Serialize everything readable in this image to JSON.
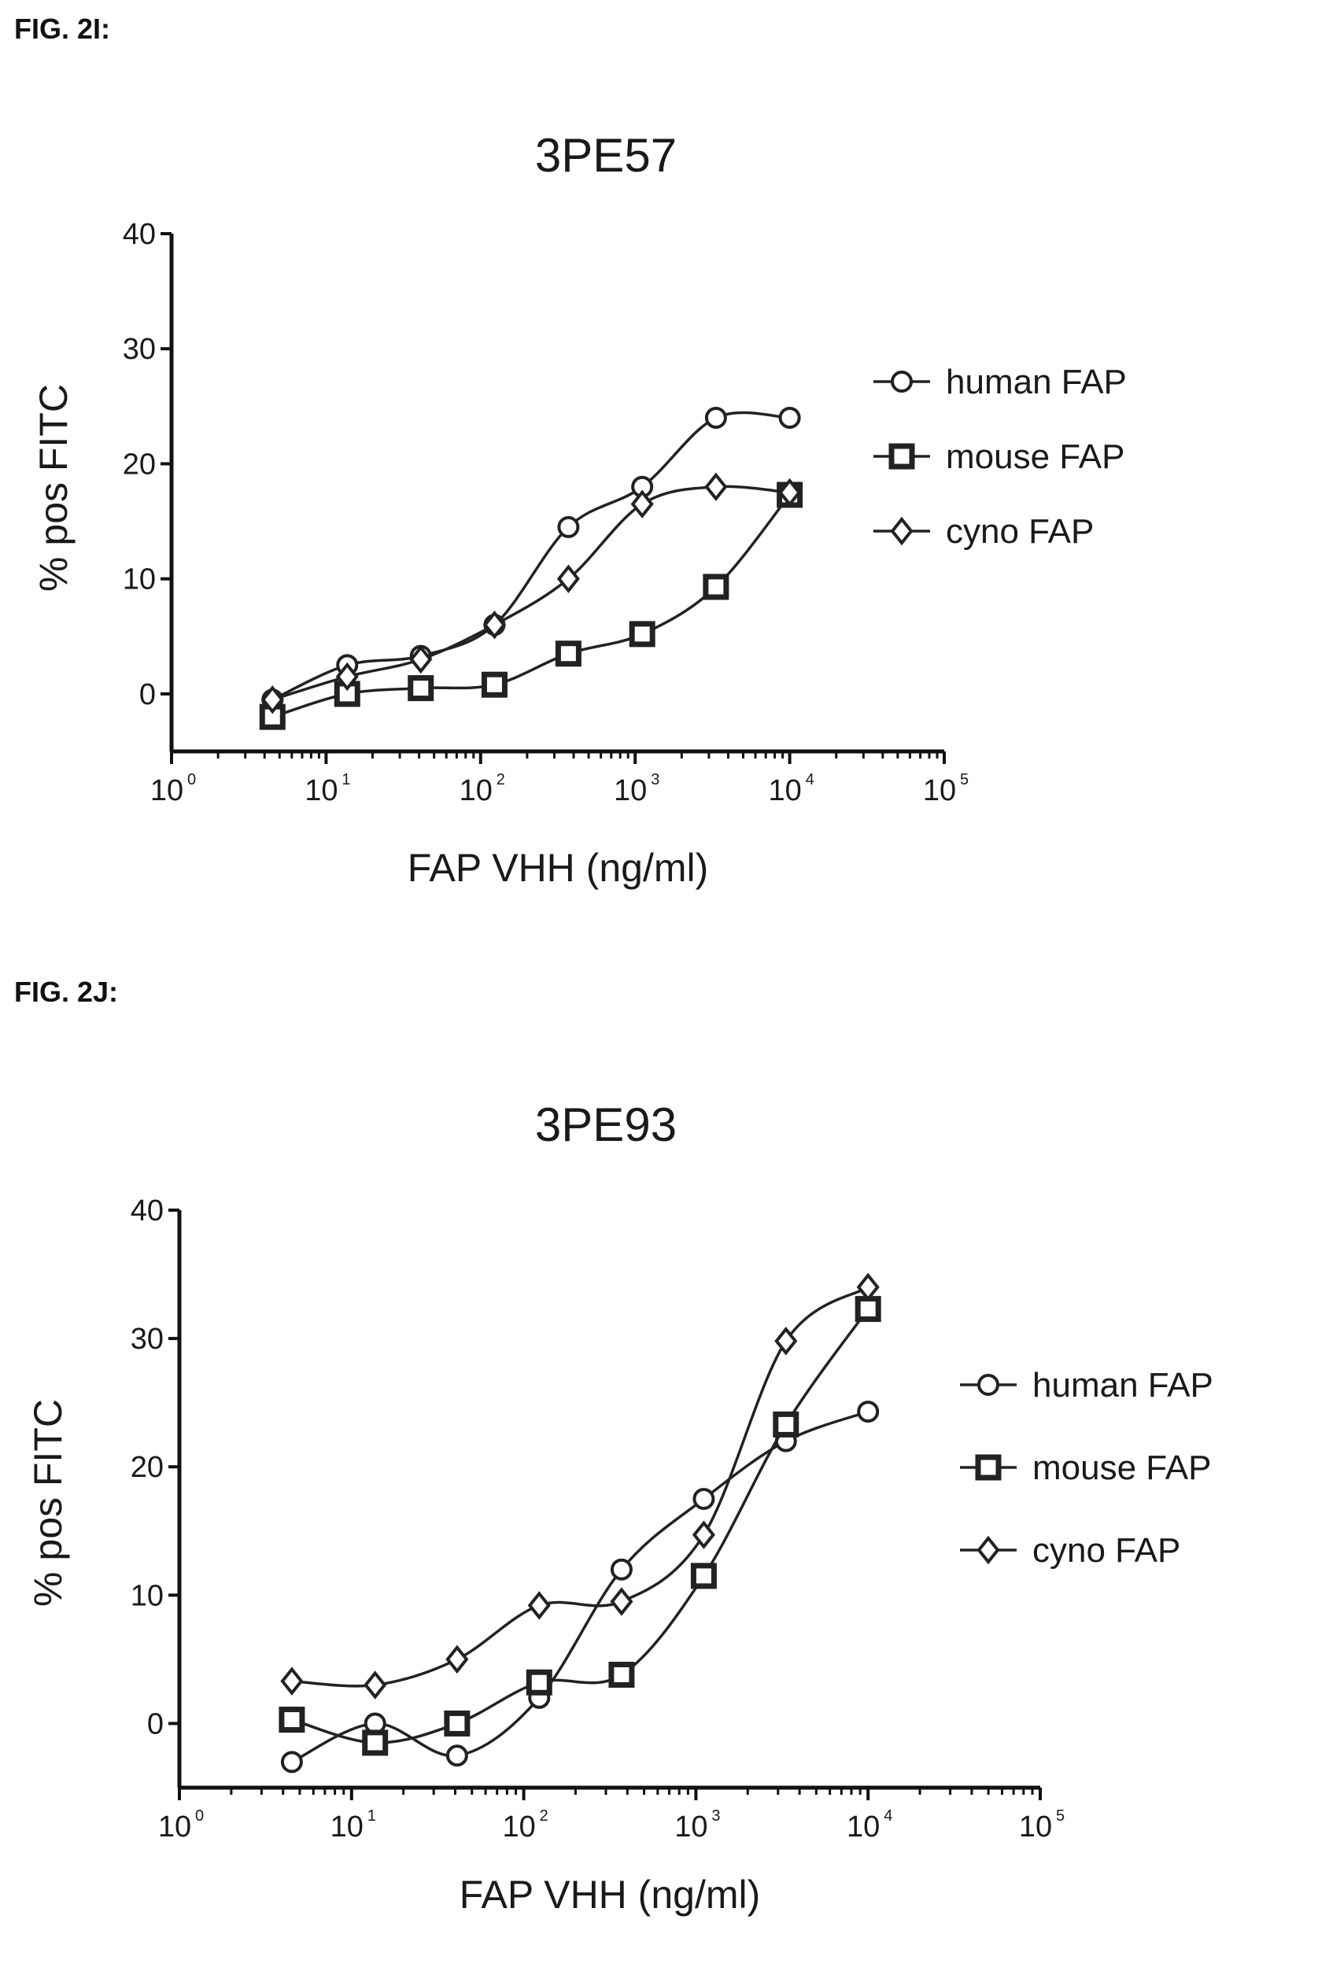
{
  "figures": [
    {
      "label": "FIG. 2I:"
    },
    {
      "label": "FIG. 2J:"
    }
  ],
  "chart_data": [
    {
      "type": "scatter",
      "title": "3PE57",
      "xlabel": "FAP VHH (ng/ml)",
      "ylabel": "% pos FITC",
      "xscale": "log",
      "xlim": [
        1,
        100000
      ],
      "ylim": [
        -5,
        40
      ],
      "yticks": [
        0,
        10,
        20,
        30,
        40
      ],
      "xticks": [
        {
          "base": "10",
          "exp": "0"
        },
        {
          "base": "10",
          "exp": "1"
        },
        {
          "base": "10",
          "exp": "2"
        },
        {
          "base": "10",
          "exp": "3"
        },
        {
          "base": "10",
          "exp": "4"
        },
        {
          "base": "10",
          "exp": "5"
        }
      ],
      "legend_position": "right",
      "series": [
        {
          "name": "human FAP",
          "marker": "circle",
          "x": [
            4.5,
            13.7,
            41,
            123,
            370,
            1111,
            3333,
            10000
          ],
          "y": [
            -0.5,
            2.5,
            3.3,
            6.0,
            14.5,
            18.0,
            24.0,
            24.0
          ]
        },
        {
          "name": "mouse FAP",
          "marker": "square",
          "x": [
            4.5,
            13.7,
            41,
            123,
            370,
            1111,
            3333,
            10000
          ],
          "y": [
            -2.0,
            0.0,
            0.5,
            0.8,
            3.5,
            5.2,
            9.3,
            17.3
          ]
        },
        {
          "name": "cyno FAP",
          "marker": "diamond",
          "x": [
            4.5,
            13.7,
            41,
            123,
            370,
            1111,
            3333,
            10000
          ],
          "y": [
            -0.5,
            1.5,
            3.0,
            6.0,
            10.0,
            16.5,
            18.0,
            17.5
          ]
        }
      ]
    },
    {
      "type": "scatter",
      "title": "3PE93",
      "xlabel": "FAP VHH (ng/ml)",
      "ylabel": "% pos FITC",
      "xscale": "log",
      "xlim": [
        1,
        100000
      ],
      "ylim": [
        -5,
        40
      ],
      "yticks": [
        0,
        10,
        20,
        30,
        40
      ],
      "xticks": [
        {
          "base": "10",
          "exp": "0"
        },
        {
          "base": "10",
          "exp": "1"
        },
        {
          "base": "10",
          "exp": "2"
        },
        {
          "base": "10",
          "exp": "3"
        },
        {
          "base": "10",
          "exp": "4"
        },
        {
          "base": "10",
          "exp": "5"
        }
      ],
      "legend_position": "right",
      "series": [
        {
          "name": "human FAP",
          "marker": "circle",
          "x": [
            4.5,
            13.7,
            41,
            123,
            370,
            1111,
            3333,
            10000
          ],
          "y": [
            -3.0,
            0.0,
            -2.5,
            2.0,
            12.0,
            17.5,
            22.0,
            24.3
          ]
        },
        {
          "name": "mouse FAP",
          "marker": "square",
          "x": [
            4.5,
            13.7,
            41,
            123,
            370,
            1111,
            3333,
            10000
          ],
          "y": [
            0.3,
            -1.5,
            0.0,
            3.2,
            3.8,
            11.5,
            23.3,
            32.3
          ]
        },
        {
          "name": "cyno FAP",
          "marker": "diamond",
          "x": [
            4.5,
            13.7,
            41,
            123,
            370,
            1111,
            3333,
            10000
          ],
          "y": [
            3.3,
            3.0,
            5.0,
            9.2,
            9.5,
            14.7,
            29.8,
            34.0
          ]
        }
      ]
    }
  ]
}
